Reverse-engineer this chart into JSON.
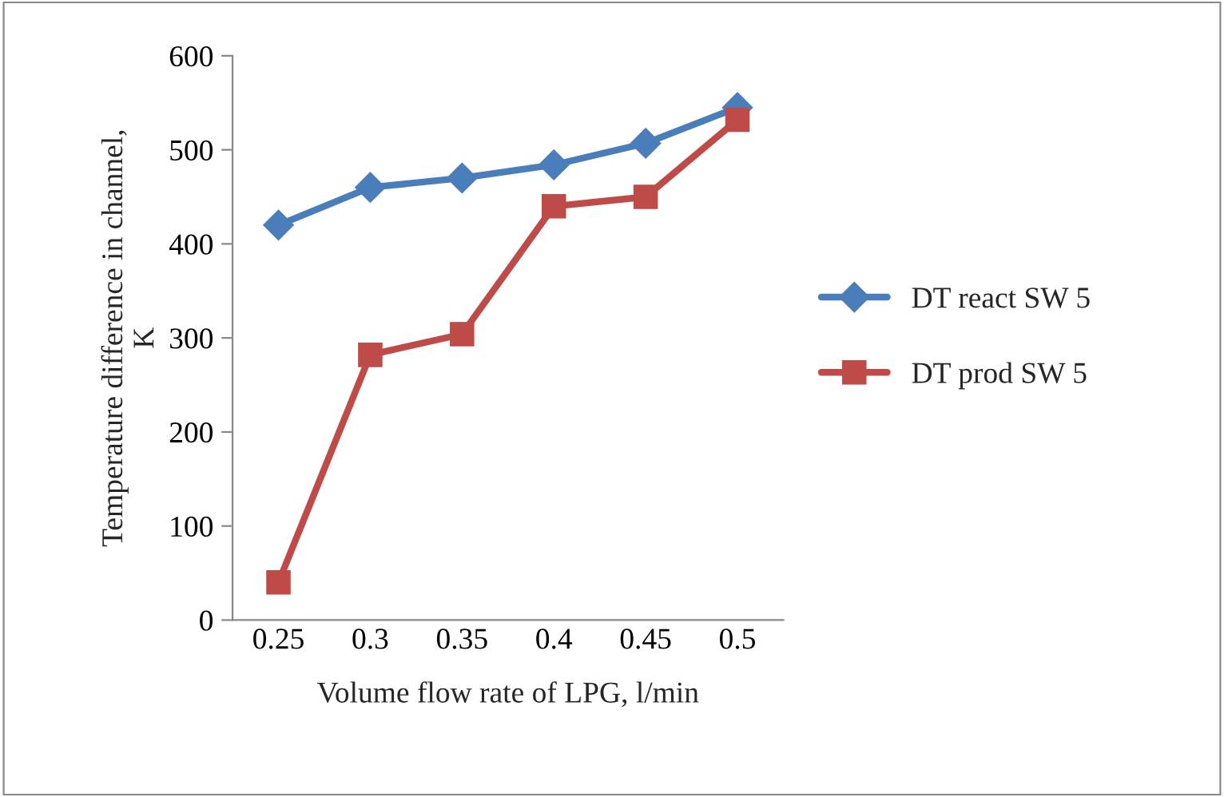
{
  "chart_data": {
    "type": "line",
    "xlabel": "Volume flow rate of LPG, l/min",
    "ylabel": "Temperature difference in channel,\nK",
    "categories": [
      "0.25",
      "0.3",
      "0.35",
      "0.4",
      "0.45",
      "0.5"
    ],
    "series": [
      {
        "name": "DT react SW 5",
        "color": "#4a7ebb",
        "marker": "diamond",
        "values": [
          420,
          460,
          470,
          484,
          507,
          545
        ]
      },
      {
        "name": "DT prod SW 5",
        "color": "#be4b48",
        "marker": "square",
        "values": [
          40,
          282,
          304,
          440,
          450,
          532
        ]
      }
    ],
    "ylim": [
      0,
      600
    ],
    "yticks": [
      0,
      100,
      200,
      300,
      400,
      500,
      600
    ],
    "grid": false,
    "legend": "right",
    "line_style": "solid"
  }
}
